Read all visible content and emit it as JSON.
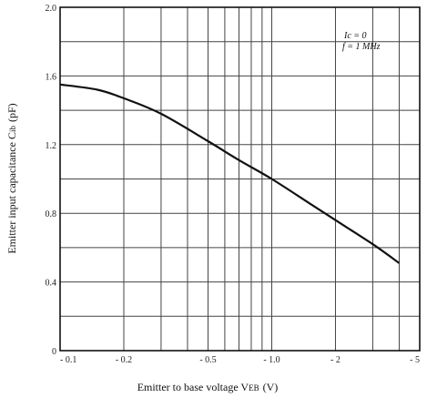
{
  "chart_data": {
    "type": "line",
    "title": "",
    "xlabel": "Emitter to base voltage V",
    "xlabel_sub": "EB",
    "xlabel_unit": "(V)",
    "ylabel": "Emitter input capacitance C",
    "ylabel_sub": "ib",
    "ylabel_unit": "(pF)",
    "xscale": "log",
    "x_display_sign": "negative",
    "xlim": [
      0.1,
      5
    ],
    "ylim": [
      0,
      2.0
    ],
    "grid": true,
    "x_major_ticks": [
      0.1,
      0.2,
      0.5,
      1.0,
      2,
      5
    ],
    "x_tick_labels": [
      "- 0.1",
      "- 0.2",
      "- 0.5",
      "- 1.0",
      "- 2",
      "- 5"
    ],
    "x_minor_grid": [
      0.3,
      0.4,
      0.6,
      0.7,
      0.8,
      0.9,
      3,
      4
    ],
    "y_grid": [
      0,
      0.2,
      0.4,
      0.6,
      0.8,
      1.0,
      1.2,
      1.4,
      1.6,
      1.8,
      2.0
    ],
    "y_ticks": [
      0,
      0.4,
      0.8,
      1.2,
      1.6,
      2.0
    ],
    "y_tick_labels": [
      "0",
      "0.4",
      "0.8",
      "1.2",
      "1.6",
      "2.0"
    ],
    "annotation_lines": [
      "Ic = 0",
      "f = 1 MHz"
    ],
    "series": [
      {
        "x": [
          0.1,
          0.15,
          0.2,
          0.3,
          0.5,
          0.7,
          1.0,
          1.5,
          2.0,
          3.0,
          4.0
        ],
        "y": [
          1.55,
          1.52,
          1.47,
          1.38,
          1.22,
          1.11,
          1.0,
          0.86,
          0.76,
          0.62,
          0.51
        ]
      }
    ]
  }
}
